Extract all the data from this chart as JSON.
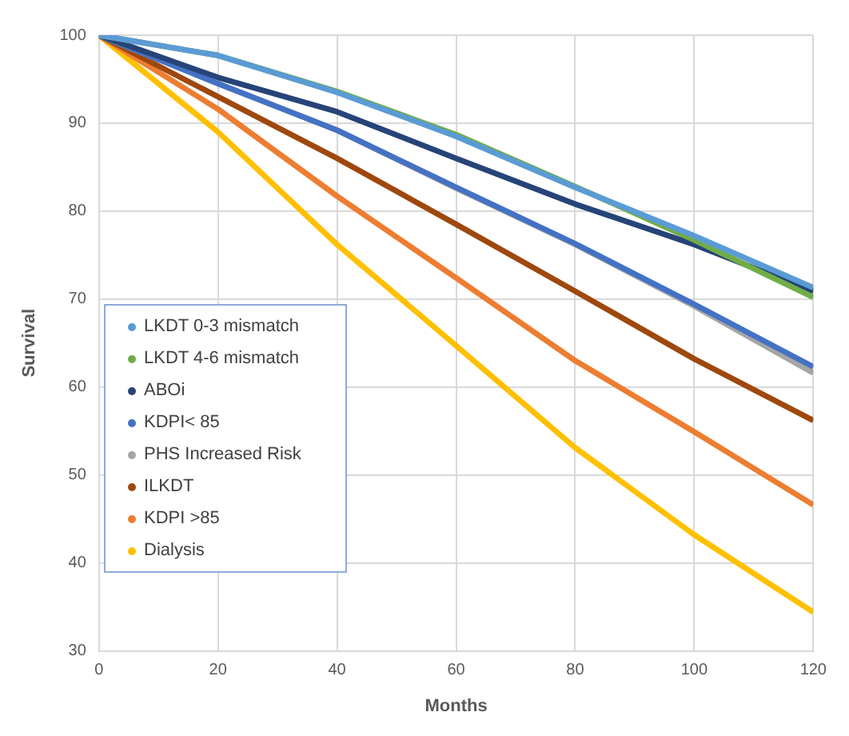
{
  "chart_data": {
    "type": "line",
    "xlabel": "Months",
    "ylabel": "Survival",
    "x": [
      0,
      20,
      40,
      60,
      80,
      100,
      120
    ],
    "xlim": [
      0,
      120
    ],
    "xticks": [
      0,
      20,
      40,
      60,
      80,
      100,
      120
    ],
    "ylim": [
      30,
      100
    ],
    "yticks": [
      30,
      40,
      50,
      60,
      70,
      80,
      90,
      100
    ],
    "grid": true,
    "legend": "left",
    "marker": "none",
    "line_style": "solid",
    "series": [
      {
        "name": "LKDT 0-3 mismatch",
        "color": "#5b9bd5",
        "values": [
          100,
          97.7,
          93.5,
          88.5,
          82.7,
          77.2,
          71.3
        ]
      },
      {
        "name": "LKDT 4-6 mismatch",
        "color": "#70ad47",
        "values": [
          100,
          97.7,
          93.6,
          88.7,
          82.8,
          76.7,
          70.2
        ]
      },
      {
        "name": "ABOi",
        "color": "#264478",
        "values": [
          100,
          95.2,
          91.3,
          86.0,
          80.8,
          76.2,
          70.9
        ]
      },
      {
        "name": "KDPI< 85",
        "color": "#4472c4",
        "values": [
          100,
          94.5,
          89.2,
          82.7,
          76.3,
          69.4,
          62.3
        ]
      },
      {
        "name": "PHS Increased Risk",
        "color": "#a5a5a5",
        "values": [
          100,
          94.5,
          89.2,
          82.6,
          76.2,
          69.2,
          61.6
        ]
      },
      {
        "name": "ILKDT",
        "color": "#9e480e",
        "values": [
          100,
          93.0,
          86.0,
          78.5,
          70.9,
          63.2,
          56.2
        ]
      },
      {
        "name": "KDPI >85",
        "color": "#ed7d31",
        "values": [
          100,
          91.6,
          81.7,
          72.4,
          63.0,
          54.9,
          46.6
        ]
      },
      {
        "name": "Dialysis",
        "color": "#ffc000",
        "values": [
          100,
          89.0,
          76.2,
          64.7,
          53.1,
          43.2,
          34.4
        ]
      }
    ]
  }
}
